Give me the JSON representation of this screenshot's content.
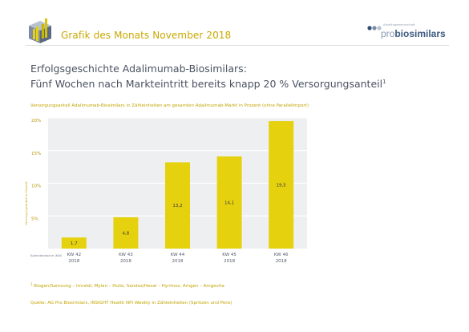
{
  "banner": {
    "title": "Grafik des Monats November 2018",
    "org_small": "Arbeitsgemeinschaft",
    "org_pro": "pro",
    "org_bio": "biosimilars"
  },
  "heading": {
    "line1": "Erfolgsgeschichte Adalimumab-Biosimilars:",
    "line2": "Fünf Wochen nach Markteintritt bereits knapp 20 % Versorgungsanteil",
    "footnote_mark": "1"
  },
  "footnote": {
    "mark": "1",
    "text": "Biogen/Samsung – Imraldi, Mylan – Hulio, Sandoz/Hexal – Hyrimoz, Amgen – Amgevita"
  },
  "source": "Quelle: AG Pro Biosimilars, INSIGHT Health NPI Weekly in Zähleinheiten (Spritzen und Pens)",
  "colors": {
    "bar": "#e6d10f",
    "plot_bg": "#eeeff1",
    "grid": "#ffffff",
    "accent_text": "#c2a400"
  },
  "chart_data": {
    "type": "bar",
    "title": "Versorgungsanteil Adalimumab-Biosimilars in Zähleinheiten am gesamten Adalimumab-Markt in Prozent (ohne Parallelimport)",
    "xlabel": "Kalenderwoche (KW)",
    "ylabel": "Versorgungsanteil in Prozent",
    "categories": [
      [
        "KW 42",
        "2018"
      ],
      [
        "KW 43",
        "2018"
      ],
      [
        "KW 44",
        "2018"
      ],
      [
        "KW 45",
        "2018"
      ],
      [
        "KW 46",
        "2018"
      ]
    ],
    "values": [
      1.7,
      4.8,
      13.2,
      14.1,
      19.5
    ],
    "value_labels": [
      "1,7",
      "4,8",
      "13,2",
      "14,1",
      "19,5"
    ],
    "ylim": [
      0,
      20
    ],
    "yticks": [
      5,
      10,
      15,
      20
    ],
    "ytick_labels": [
      "5%",
      "10%",
      "15%",
      "20%"
    ],
    "grid": true,
    "legend": "none"
  }
}
